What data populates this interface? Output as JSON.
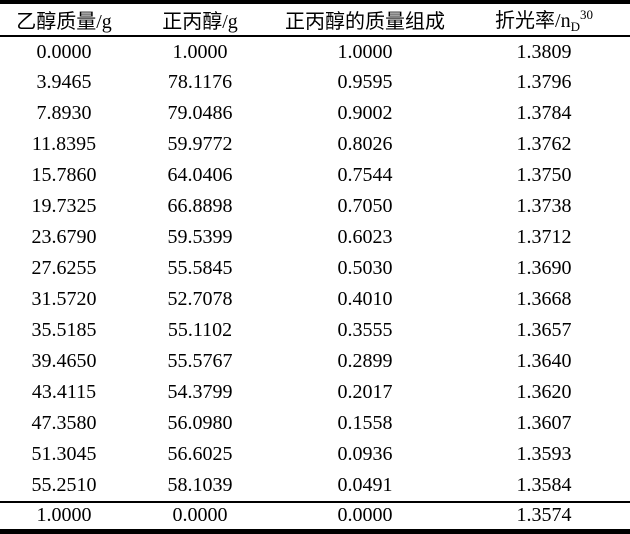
{
  "colors": {
    "background": "#ffffff",
    "text": "#000000",
    "rule": "#000000"
  },
  "table": {
    "columns": [
      {
        "label": "乙醇质量/g"
      },
      {
        "label": "正丙醇/g"
      },
      {
        "label": "正丙醇的质量组成"
      },
      {
        "label_base": "折光率/n",
        "label_sub": "D",
        "label_sup": "30"
      }
    ],
    "rows": [
      [
        "0.0000",
        "1.0000",
        "1.0000",
        "1.3809"
      ],
      [
        "3.9465",
        "78.1176",
        "0.9595",
        "1.3796"
      ],
      [
        "7.8930",
        "79.0486",
        "0.9002",
        "1.3784"
      ],
      [
        "11.8395",
        "59.9772",
        "0.8026",
        "1.3762"
      ],
      [
        "15.7860",
        "64.0406",
        "0.7544",
        "1.3750"
      ],
      [
        "19.7325",
        "66.8898",
        "0.7050",
        "1.3738"
      ],
      [
        "23.6790",
        "59.5399",
        "0.6023",
        "1.3712"
      ],
      [
        "27.6255",
        "55.5845",
        "0.5030",
        "1.3690"
      ],
      [
        "31.5720",
        "52.7078",
        "0.4010",
        "1.3668"
      ],
      [
        "35.5185",
        "55.1102",
        "0.3555",
        "1.3657"
      ],
      [
        "39.4650",
        "55.5767",
        "0.2899",
        "1.3640"
      ],
      [
        "43.4115",
        "54.3799",
        "0.2017",
        "1.3620"
      ],
      [
        "47.3580",
        "56.0980",
        "0.1558",
        "1.3607"
      ],
      [
        "51.3045",
        "56.6025",
        "0.0936",
        "1.3593"
      ],
      [
        "55.2510",
        "58.1039",
        "0.0491",
        "1.3584"
      ]
    ],
    "footer_row": [
      "1.0000",
      "0.0000",
      "0.0000",
      "1.3574"
    ]
  },
  "chart_data": {
    "type": "table",
    "title": "",
    "columns": [
      "乙醇质量/g",
      "正丙醇/g",
      "正丙醇的质量组成",
      "折光率/nD30"
    ],
    "rows": [
      [
        0.0,
        1.0,
        1.0,
        1.3809
      ],
      [
        3.9465,
        78.1176,
        0.9595,
        1.3796
      ],
      [
        7.893,
        79.0486,
        0.9002,
        1.3784
      ],
      [
        11.8395,
        59.9772,
        0.8026,
        1.3762
      ],
      [
        15.786,
        64.0406,
        0.7544,
        1.375
      ],
      [
        19.7325,
        66.8898,
        0.705,
        1.3738
      ],
      [
        23.679,
        59.5399,
        0.6023,
        1.3712
      ],
      [
        27.6255,
        55.5845,
        0.503,
        1.369
      ],
      [
        31.572,
        52.7078,
        0.401,
        1.3668
      ],
      [
        35.5185,
        55.1102,
        0.3555,
        1.3657
      ],
      [
        39.465,
        55.5767,
        0.2899,
        1.364
      ],
      [
        43.4115,
        54.3799,
        0.2017,
        1.362
      ],
      [
        47.358,
        56.098,
        0.1558,
        1.3607
      ],
      [
        51.3045,
        56.6025,
        0.0936,
        1.3593
      ],
      [
        55.251,
        58.1039,
        0.0491,
        1.3584
      ],
      [
        1.0,
        0.0,
        0.0,
        1.3574
      ]
    ]
  }
}
